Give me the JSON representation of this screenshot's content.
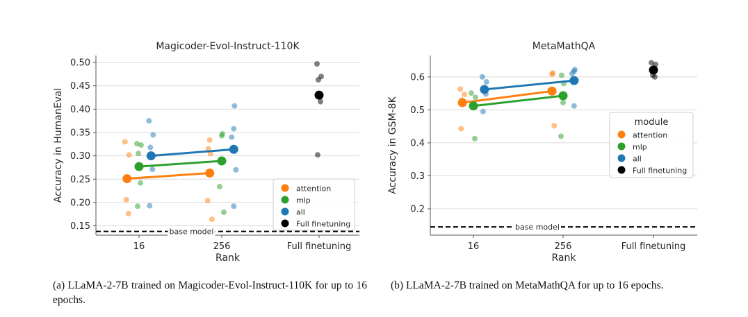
{
  "colors": {
    "attention": "#ff7f0e",
    "mlp": "#2ca02c",
    "all": "#1f77b4",
    "full": "#000000"
  },
  "captions": {
    "a": "(a) LLaMA-2-7B trained on Magicoder-Evol-Instruct-110K for up to 16 epochs.",
    "b": "(b) LLaMA-2-7B trained on MetaMathQA for up to 16 epochs."
  },
  "chart_data": [
    {
      "type": "scatter",
      "title": "Magicoder-Evol-Instruct-110K",
      "xlabel": "Rank",
      "ylabel": "Accuracy in HumanEval",
      "categories": [
        "16",
        "256",
        "Full finetuning"
      ],
      "yticks": [
        "0.15",
        "0.20",
        "0.25",
        "0.30",
        "0.35",
        "0.40",
        "0.45",
        "0.50"
      ],
      "ylim": [
        0.13,
        0.515
      ],
      "grid": "horizontal",
      "legend": {
        "title": "",
        "placement": "lower-right",
        "entries": [
          "attention",
          "mlp",
          "all",
          "Full finetuning"
        ]
      },
      "baseline": {
        "label": "base model",
        "value": 0.138
      },
      "series": [
        {
          "name": "attention",
          "points": [
            [
              0.32,
              0.33
            ],
            [
              0.32,
              0.302
            ],
            [
              0.32,
              0.206
            ],
            [
              0.32,
              0.176
            ],
            [
              1.32,
              0.315
            ],
            [
              1.32,
              0.305
            ],
            [
              1.32,
              0.334
            ],
            [
              1.32,
              0.204
            ],
            [
              1.32,
              0.164
            ]
          ],
          "means": [
            [
              0.32,
              0.251
            ],
            [
              1.32,
              0.263
            ]
          ]
        },
        {
          "name": "mlp",
          "points": [
            [
              0.5,
              0.326
            ],
            [
              0.5,
              0.323
            ],
            [
              0.5,
              0.305
            ],
            [
              0.5,
              0.242
            ],
            [
              0.5,
              0.192
            ],
            [
              1.5,
              0.347
            ],
            [
              1.5,
              0.343
            ],
            [
              1.5,
              0.234
            ],
            [
              1.5,
              0.179
            ]
          ],
          "means": [
            [
              0.5,
              0.277
            ],
            [
              1.5,
              0.289
            ]
          ]
        },
        {
          "name": "all",
          "points": [
            [
              0.68,
              0.375
            ],
            [
              0.68,
              0.345
            ],
            [
              0.68,
              0.318
            ],
            [
              0.68,
              0.271
            ],
            [
              0.68,
              0.193
            ],
            [
              1.68,
              0.407
            ],
            [
              1.68,
              0.358
            ],
            [
              1.68,
              0.34
            ],
            [
              1.68,
              0.27
            ],
            [
              1.68,
              0.192
            ]
          ],
          "means": [
            [
              0.68,
              0.3
            ],
            [
              1.68,
              0.314
            ]
          ]
        },
        {
          "name": "Full finetuning",
          "points": [
            [
              2.5,
              0.497
            ],
            [
              2.5,
              0.47
            ],
            [
              2.5,
              0.463
            ],
            [
              2.5,
              0.416
            ],
            [
              2.5,
              0.302
            ]
          ],
          "means": [
            [
              2.5,
              0.43
            ]
          ]
        }
      ]
    },
    {
      "type": "scatter",
      "title": "MetaMathQA",
      "xlabel": "Rank",
      "ylabel": "Accuracy in GSM-8K",
      "categories": [
        "16",
        "256",
        "Full finetuning"
      ],
      "yticks": [
        "0.2",
        "0.3",
        "0.4",
        "0.5",
        "0.6"
      ],
      "ylim": [
        0.12,
        0.665
      ],
      "grid": "horizontal",
      "legend": {
        "title": "module",
        "placement": "right",
        "entries": [
          "attention",
          "mlp",
          "all",
          "Full finetuning"
        ]
      },
      "baseline": {
        "label": "base model",
        "value": 0.145
      },
      "series": [
        {
          "name": "attention",
          "points": [
            [
              0.32,
              0.563
            ],
            [
              0.32,
              0.547
            ],
            [
              0.32,
              0.53
            ],
            [
              0.32,
              0.518
            ],
            [
              0.32,
              0.443
            ],
            [
              1.32,
              0.612
            ],
            [
              1.32,
              0.608
            ],
            [
              1.32,
              0.56
            ],
            [
              1.32,
              0.452
            ]
          ],
          "means": [
            [
              0.32,
              0.522
            ],
            [
              1.32,
              0.557
            ]
          ]
        },
        {
          "name": "mlp",
          "points": [
            [
              0.5,
              0.551
            ],
            [
              0.5,
              0.538
            ],
            [
              0.5,
              0.512
            ],
            [
              0.5,
              0.413
            ],
            [
              1.5,
              0.605
            ],
            [
              1.5,
              0.58
            ],
            [
              1.5,
              0.522
            ],
            [
              1.5,
              0.42
            ]
          ],
          "means": [
            [
              0.5,
              0.512
            ],
            [
              1.5,
              0.543
            ]
          ]
        },
        {
          "name": "all",
          "points": [
            [
              0.68,
              0.6
            ],
            [
              0.68,
              0.585
            ],
            [
              0.68,
              0.56
            ],
            [
              0.68,
              0.548
            ],
            [
              0.68,
              0.495
            ],
            [
              1.68,
              0.622
            ],
            [
              1.68,
              0.617
            ],
            [
              1.68,
              0.61
            ],
            [
              1.68,
              0.589
            ],
            [
              1.68,
              0.512
            ]
          ],
          "means": [
            [
              0.68,
              0.562
            ],
            [
              1.68,
              0.589
            ]
          ]
        },
        {
          "name": "Full finetuning",
          "points": [
            [
              2.5,
              0.643
            ],
            [
              2.5,
              0.638
            ],
            [
              2.5,
              0.605
            ],
            [
              2.5,
              0.6
            ]
          ],
          "means": [
            [
              2.5,
              0.621
            ]
          ]
        }
      ]
    }
  ]
}
